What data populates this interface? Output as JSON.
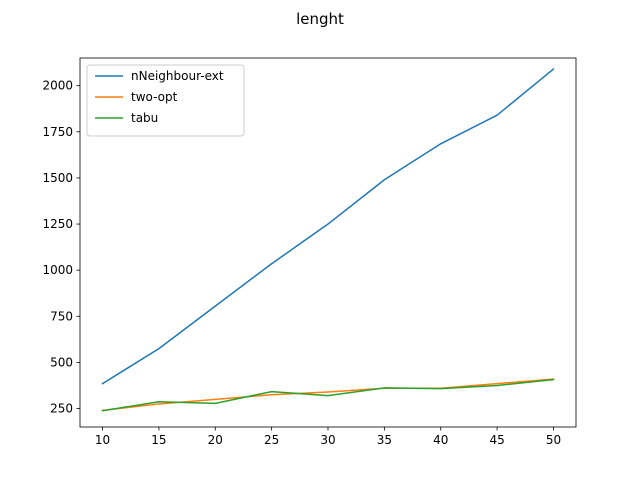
{
  "chart_data": {
    "type": "line",
    "title": "lenght",
    "xlabel": "",
    "ylabel": "",
    "x": [
      10,
      15,
      20,
      25,
      30,
      35,
      40,
      45,
      50
    ],
    "xticks": [
      10,
      15,
      20,
      25,
      30,
      35,
      40,
      45,
      50
    ],
    "yticks": [
      250,
      500,
      750,
      1000,
      1250,
      1500,
      1750,
      2000
    ],
    "xlim": [
      8,
      52
    ],
    "ylim": [
      150,
      2150
    ],
    "grid": false,
    "legend_position": "upper-left",
    "series": [
      {
        "name": "nNeighbour-ext",
        "color": "#1f77b4",
        "values": [
          385,
          575,
          805,
          1035,
          1250,
          1490,
          1685,
          1840,
          2090
        ]
      },
      {
        "name": "two-opt",
        "color": "#ff7f0e",
        "values": [
          240,
          275,
          300,
          325,
          340,
          360,
          360,
          385,
          410
        ]
      },
      {
        "name": "tabu",
        "color": "#2ca02c",
        "values": [
          238,
          287,
          278,
          342,
          320,
          362,
          358,
          375,
          407
        ]
      }
    ]
  }
}
